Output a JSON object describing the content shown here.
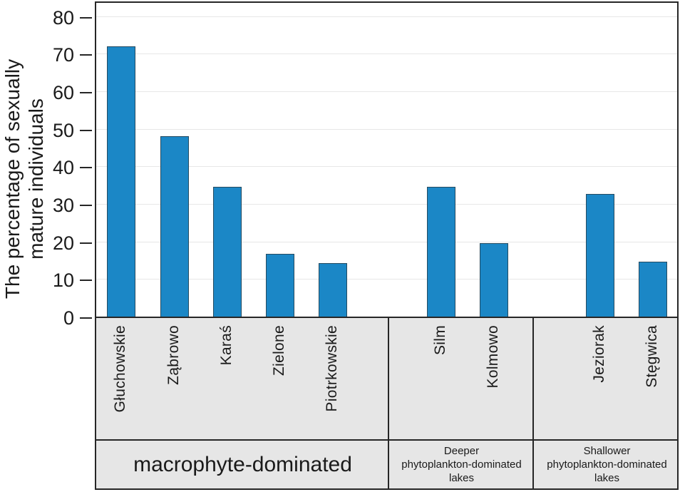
{
  "chart_data": {
    "type": "bar",
    "title": "",
    "xlabel": "",
    "ylabel": "The percentage of sexually mature individuals",
    "ylabel_lines": [
      "The percentage of sexually",
      "mature individuals"
    ],
    "ylim": [
      0,
      84
    ],
    "yticks": [
      0,
      10,
      20,
      30,
      40,
      50,
      60,
      70,
      80
    ],
    "grid": "horizontal",
    "legend_position": "none",
    "categories": [
      "Głuchowskie",
      "Ząbrowo",
      "Karaś",
      "Zielone",
      "Piotrkowskie",
      "Silm",
      "Kolmowo",
      "Jeziorak",
      "Stęgwica"
    ],
    "values": [
      72,
      48,
      34.5,
      16.7,
      14.2,
      34.5,
      19.5,
      32.7,
      14.7
    ],
    "bars": [
      {
        "lake": "Głuchowskie",
        "value": 72,
        "group": "macrophyte-dominated"
      },
      {
        "lake": "Ząbrowo",
        "value": 48,
        "group": "macrophyte-dominated"
      },
      {
        "lake": "Karaś",
        "value": 34.5,
        "group": "macrophyte-dominated"
      },
      {
        "lake": "Zielone",
        "value": 16.7,
        "group": "macrophyte-dominated"
      },
      {
        "lake": "Piotrkowskie",
        "value": 14.2,
        "group": "macrophyte-dominated"
      },
      {
        "lake": "Silm",
        "value": 34.5,
        "group": "Deeper phytoplankton-dominated lakes"
      },
      {
        "lake": "Kolmowo",
        "value": 19.5,
        "group": "Deeper phytoplankton-dominated lakes"
      },
      {
        "lake": "Jeziorak",
        "value": 32.7,
        "group": "Shallower phytoplankton-dominated lakes"
      },
      {
        "lake": "Stęgwica",
        "value": 14.7,
        "group": "Shallower phytoplankton-dominated lakes"
      }
    ],
    "group_cells": [
      {
        "label": "macrophyte-dominated",
        "label_lines": [
          "macrophyte-dominated"
        ],
        "label_size": "large",
        "lake_count": 5
      },
      {
        "label": "Deeper phytoplankton-dominated lakes",
        "label_lines": [
          "Deeper",
          "phytoplankton-dominated",
          "lakes"
        ],
        "label_size": "small",
        "lake_count": 2
      },
      {
        "label": "Shallower phytoplankton-dominated lakes",
        "label_lines": [
          "Shallower",
          "phytoplankton-dominated",
          "lakes"
        ],
        "label_size": "small",
        "lake_count": 2
      }
    ],
    "colors": {
      "bar_fill": "#1b87c6",
      "bar_edge": "#254b61",
      "band_background": "#e6e6e6",
      "gridline": "#e7e7e7",
      "border": "#262626",
      "text": "#1a1a1a"
    }
  }
}
